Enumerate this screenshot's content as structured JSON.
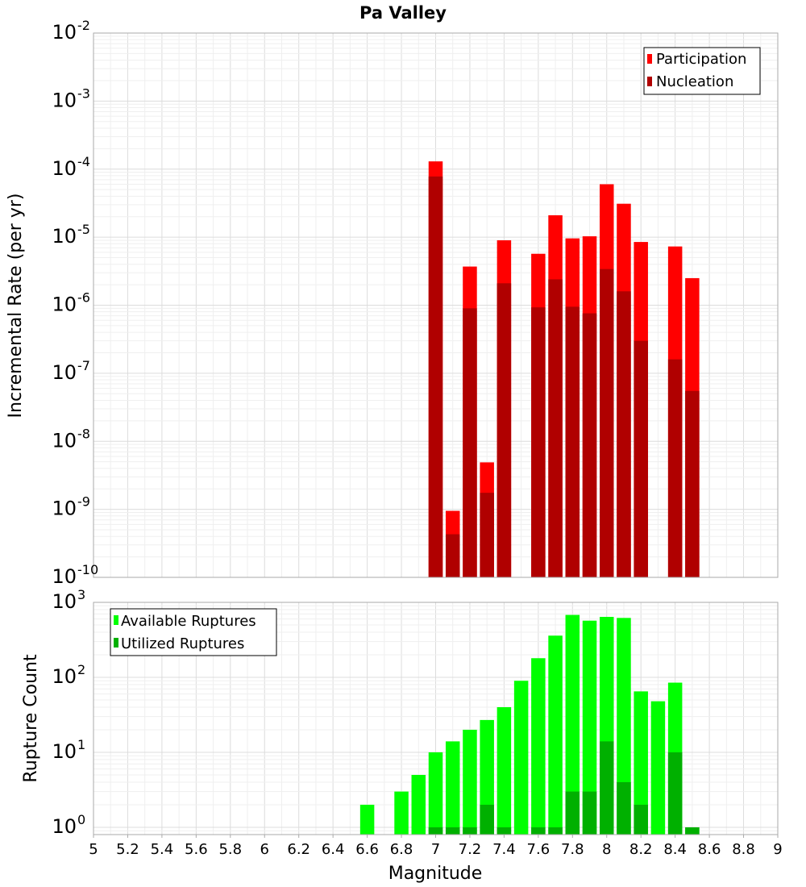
{
  "chart_data": [
    {
      "type": "bar",
      "title": "Pa Valley",
      "xlabel": "",
      "ylabel": "Incremental Rate (per yr)",
      "yscale": "log",
      "ylim": [
        1e-10,
        0.01
      ],
      "xlim": [
        5,
        9
      ],
      "y_tick_labels": [
        {
          "base": "10",
          "exp": "-10"
        },
        {
          "base": "10",
          "exp": "-9"
        },
        {
          "base": "10",
          "exp": "-8"
        },
        {
          "base": "10",
          "exp": "-7"
        },
        {
          "base": "10",
          "exp": "-6"
        },
        {
          "base": "10",
          "exp": "-5"
        },
        {
          "base": "10",
          "exp": "-4"
        },
        {
          "base": "10",
          "exp": "-3"
        },
        {
          "base": "10",
          "exp": "-2"
        }
      ],
      "legend": {
        "position": "top-right",
        "entries": [
          "Participation",
          "Nucleation"
        ]
      },
      "colors": {
        "Participation": "#ff0000",
        "Nucleation": "#b00000"
      },
      "x": [
        7.0,
        7.1,
        7.2,
        7.3,
        7.4,
        7.6,
        7.7,
        7.8,
        7.9,
        8.0,
        8.1,
        8.2,
        8.4,
        8.5
      ],
      "series": [
        {
          "name": "Participation",
          "values": [
            0.00013,
            9.5e-10,
            3.7e-06,
            4.9e-09,
            9e-06,
            5.7e-06,
            2.1e-05,
            9.6e-06,
            1.03e-05,
            6e-05,
            3.1e-05,
            8.5e-06,
            7.3e-06,
            2.5e-06
          ]
        },
        {
          "name": "Nucleation",
          "values": [
            7.8e-05,
            4.3e-10,
            9e-07,
            1.75e-09,
            2.1e-06,
            9.3e-07,
            2.4e-06,
            9.5e-07,
            7.6e-07,
            3.4e-06,
            1.6e-06,
            3e-07,
            1.6e-07,
            5.5e-08
          ]
        }
      ]
    },
    {
      "type": "bar",
      "title": "",
      "xlabel": "Magnitude",
      "ylabel": "Rupture Count",
      "yscale": "log",
      "ylim": [
        0.8,
        1000
      ],
      "xlim": [
        5,
        9
      ],
      "x_tick_labels": [
        "5",
        "5.2",
        "5.4",
        "5.6",
        "5.8",
        "6",
        "6.2",
        "6.4",
        "6.6",
        "6.8",
        "7",
        "7.2",
        "7.4",
        "7.6",
        "7.8",
        "8",
        "8.2",
        "8.4",
        "8.6",
        "8.8",
        "9"
      ],
      "y_tick_labels": [
        {
          "base": "10",
          "exp": "0"
        },
        {
          "base": "10",
          "exp": "1"
        },
        {
          "base": "10",
          "exp": "2"
        },
        {
          "base": "10",
          "exp": "3"
        }
      ],
      "legend": {
        "position": "top-left",
        "entries": [
          "Available Ruptures",
          "Utilized Ruptures"
        ]
      },
      "colors": {
        "Available Ruptures": "#00ff00",
        "Utilized Ruptures": "#00b000"
      },
      "x": [
        6.6,
        6.8,
        6.9,
        7.0,
        7.1,
        7.2,
        7.3,
        7.4,
        7.5,
        7.6,
        7.7,
        7.8,
        7.9,
        8.0,
        8.1,
        8.2,
        8.3,
        8.4,
        8.5
      ],
      "series": [
        {
          "name": "Available Ruptures",
          "values": [
            2,
            3,
            5,
            10,
            14,
            20,
            27,
            40,
            90,
            180,
            360,
            680,
            570,
            640,
            620,
            65,
            48,
            85,
            1
          ]
        },
        {
          "name": "Utilized Ruptures",
          "values": [
            null,
            null,
            null,
            1,
            1,
            1,
            2,
            1,
            null,
            1,
            1,
            3,
            3,
            14,
            4,
            2,
            null,
            10,
            1
          ]
        }
      ]
    }
  ]
}
